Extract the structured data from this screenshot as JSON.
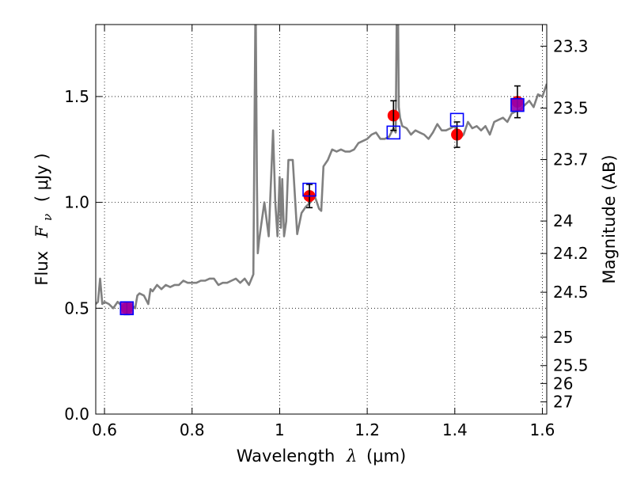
{
  "chart_data": {
    "type": "line",
    "xlabel": {
      "text": "Wavelength",
      "symbol": "λ",
      "units": "(μm)"
    },
    "ylabel": {
      "text": "Flux",
      "symbol": "F",
      "subscript": "ν",
      "units": "( μJy )"
    },
    "y2label": "Magnitude (AB)",
    "xlim": [
      0.58,
      1.61
    ],
    "ylim": [
      0.0,
      1.84
    ],
    "x_ticks": [
      {
        "value": 0.6,
        "label": "0.6"
      },
      {
        "value": 0.8,
        "label": "0.8"
      },
      {
        "value": 1.0,
        "label": "1"
      },
      {
        "value": 1.2,
        "label": "1.2"
      },
      {
        "value": 1.4,
        "label": "1.4"
      },
      {
        "value": 1.6,
        "label": "1.6"
      }
    ],
    "y_ticks": [
      {
        "value": 0.0,
        "label": "0.0"
      },
      {
        "value": 0.5,
        "label": "0.5"
      },
      {
        "value": 1.0,
        "label": "1.0"
      },
      {
        "value": 1.5,
        "label": "1.5"
      }
    ],
    "magnitude_ticks": [
      {
        "mag": 23.3,
        "label": "23.3"
      },
      {
        "mag": 23.5,
        "label": "23.5"
      },
      {
        "mag": 23.7,
        "label": "23.7"
      },
      {
        "mag": 24.0,
        "label": "24"
      },
      {
        "mag": 24.2,
        "label": "24.2"
      },
      {
        "mag": 24.5,
        "label": "24.5"
      },
      {
        "mag": 25.0,
        "label": "25"
      },
      {
        "mag": 25.5,
        "label": "25.5"
      },
      {
        "mag": 26.0,
        "label": "26"
      },
      {
        "mag": 27.0,
        "label": "27"
      }
    ],
    "grid": true,
    "colors": {
      "model": "#808080",
      "observed": "#ff0000",
      "model_photometry": "#0000ff",
      "overlap": "#9400b0"
    },
    "model_spectrum": {
      "x": [
        0.58,
        0.585,
        0.59,
        0.595,
        0.6,
        0.61,
        0.62,
        0.63,
        0.64,
        0.65,
        0.66,
        0.67,
        0.675,
        0.68,
        0.69,
        0.7,
        0.705,
        0.71,
        0.72,
        0.73,
        0.74,
        0.75,
        0.76,
        0.77,
        0.78,
        0.79,
        0.8,
        0.81,
        0.82,
        0.83,
        0.84,
        0.85,
        0.86,
        0.87,
        0.88,
        0.89,
        0.9,
        0.91,
        0.92,
        0.93,
        0.94,
        0.945,
        0.948,
        0.95,
        0.953,
        0.957,
        0.965,
        0.975,
        0.985,
        0.99,
        0.995,
        1.0,
        1.003,
        1.006,
        1.01,
        1.015,
        1.02,
        1.03,
        1.04,
        1.05,
        1.06,
        1.07,
        1.08,
        1.085,
        1.09,
        1.095,
        1.1,
        1.11,
        1.12,
        1.13,
        1.14,
        1.15,
        1.16,
        1.17,
        1.18,
        1.19,
        1.2,
        1.21,
        1.22,
        1.23,
        1.24,
        1.25,
        1.26,
        1.265,
        1.268,
        1.27,
        1.272,
        1.275,
        1.28,
        1.29,
        1.3,
        1.31,
        1.32,
        1.33,
        1.34,
        1.35,
        1.36,
        1.37,
        1.38,
        1.39,
        1.4,
        1.41,
        1.42,
        1.43,
        1.44,
        1.45,
        1.46,
        1.47,
        1.48,
        1.49,
        1.5,
        1.51,
        1.52,
        1.53,
        1.54,
        1.55,
        1.56,
        1.57,
        1.58,
        1.59,
        1.6,
        1.61
      ],
      "y": [
        0.52,
        0.53,
        0.64,
        0.52,
        0.53,
        0.52,
        0.5,
        0.53,
        0.51,
        0.49,
        0.52,
        0.5,
        0.56,
        0.57,
        0.56,
        0.52,
        0.59,
        0.58,
        0.61,
        0.59,
        0.61,
        0.6,
        0.61,
        0.61,
        0.63,
        0.62,
        0.62,
        0.62,
        0.63,
        0.63,
        0.64,
        0.64,
        0.61,
        0.62,
        0.62,
        0.63,
        0.64,
        0.62,
        0.64,
        0.61,
        0.66,
        2.0,
        1.1,
        0.76,
        0.82,
        0.88,
        1.0,
        0.84,
        1.34,
        1.0,
        0.84,
        1.12,
        0.88,
        1.11,
        0.84,
        0.91,
        1.2,
        1.2,
        0.85,
        0.95,
        0.98,
        1.0,
        1.03,
        1.0,
        0.97,
        0.96,
        1.17,
        1.2,
        1.25,
        1.24,
        1.25,
        1.24,
        1.24,
        1.25,
        1.28,
        1.29,
        1.3,
        1.32,
        1.33,
        1.3,
        1.3,
        1.31,
        1.35,
        1.33,
        2.0,
        2.0,
        1.45,
        1.4,
        1.36,
        1.35,
        1.32,
        1.34,
        1.33,
        1.32,
        1.3,
        1.33,
        1.37,
        1.34,
        1.34,
        1.35,
        1.36,
        1.3,
        1.32,
        1.38,
        1.35,
        1.36,
        1.34,
        1.36,
        1.32,
        1.38,
        1.39,
        1.4,
        1.38,
        1.42,
        1.43,
        1.44,
        1.46,
        1.48,
        1.45,
        1.51,
        1.5,
        1.56
      ]
    },
    "observed_points": [
      {
        "x": 0.651,
        "y": 0.5,
        "err": 0.03
      },
      {
        "x": 1.068,
        "y": 1.03,
        "err": 0.055
      },
      {
        "x": 1.26,
        "y": 1.41,
        "err": 0.07
      },
      {
        "x": 1.405,
        "y": 1.32,
        "err": 0.06
      },
      {
        "x": 1.543,
        "y": 1.475,
        "err": 0.075
      }
    ],
    "model_photometry_points": [
      {
        "x": 0.651,
        "y": 0.5
      },
      {
        "x": 1.068,
        "y": 1.06
      },
      {
        "x": 1.26,
        "y": 1.33
      },
      {
        "x": 1.405,
        "y": 1.39
      },
      {
        "x": 1.543,
        "y": 1.46
      }
    ]
  }
}
